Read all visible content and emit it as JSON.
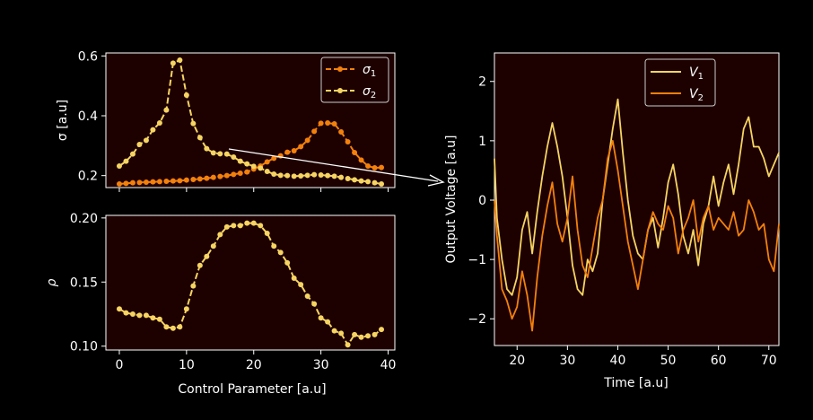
{
  "chart_data": [
    {
      "type": "line",
      "panel": "top-left",
      "xlabel": "",
      "ylabel": "σ [a.u]",
      "xlim": [
        -2,
        41
      ],
      "ylim": [
        0.16,
        0.61
      ],
      "yticks": [
        0.2,
        0.4,
        0.6
      ],
      "ytick_labels": [
        "0.2",
        "0.4",
        "0.6"
      ],
      "xticks": [
        0,
        10,
        20,
        30,
        40
      ],
      "grid": false,
      "legend_position": "top-right",
      "series": [
        {
          "name": "σ1",
          "legend_base": "σ",
          "legend_sub": "1",
          "color": "#f4800c",
          "x": [
            0,
            1,
            2,
            3,
            4,
            5,
            6,
            7,
            8,
            9,
            10,
            11,
            12,
            13,
            14,
            15,
            16,
            17,
            18,
            19,
            20,
            21,
            22,
            23,
            24,
            25,
            26,
            27,
            28,
            29,
            30,
            31,
            32,
            33,
            34,
            35,
            36,
            37,
            38,
            39
          ],
          "y": [
            0.172,
            0.174,
            0.176,
            0.177,
            0.178,
            0.179,
            0.18,
            0.181,
            0.182,
            0.183,
            0.185,
            0.187,
            0.189,
            0.191,
            0.194,
            0.197,
            0.2,
            0.204,
            0.208,
            0.212,
            0.222,
            0.232,
            0.246,
            0.258,
            0.266,
            0.278,
            0.283,
            0.297,
            0.318,
            0.348,
            0.375,
            0.376,
            0.373,
            0.346,
            0.313,
            0.277,
            0.252,
            0.232,
            0.226,
            0.227
          ]
        },
        {
          "name": "σ2",
          "legend_base": "σ",
          "legend_sub": "2",
          "color": "#f6d462",
          "x": [
            0,
            1,
            2,
            3,
            4,
            5,
            6,
            7,
            8,
            9,
            10,
            11,
            12,
            13,
            14,
            15,
            16,
            17,
            18,
            19,
            20,
            21,
            22,
            23,
            24,
            25,
            26,
            27,
            28,
            29,
            30,
            31,
            32,
            33,
            34,
            35,
            36,
            37,
            38,
            39
          ],
          "y": [
            0.232,
            0.248,
            0.272,
            0.304,
            0.318,
            0.353,
            0.376,
            0.419,
            0.576,
            0.586,
            0.469,
            0.374,
            0.327,
            0.29,
            0.276,
            0.273,
            0.272,
            0.262,
            0.248,
            0.239,
            0.231,
            0.225,
            0.214,
            0.205,
            0.201,
            0.2,
            0.198,
            0.199,
            0.201,
            0.203,
            0.202,
            0.2,
            0.198,
            0.194,
            0.19,
            0.186,
            0.182,
            0.18,
            0.176,
            0.172
          ]
        }
      ]
    },
    {
      "type": "line",
      "panel": "bottom-left",
      "xlabel": "Control Parameter [a.u]",
      "ylabel": "ρ",
      "xlim": [
        -2,
        41
      ],
      "ylim": [
        0.097,
        0.202
      ],
      "yticks": [
        0.1,
        0.15,
        0.2
      ],
      "ytick_labels": [
        "0.10",
        "0.15",
        "0.20"
      ],
      "xticks": [
        0,
        10,
        20,
        30,
        40
      ],
      "xtick_labels": [
        "0",
        "10",
        "20",
        "30",
        "40"
      ],
      "grid": false,
      "series": [
        {
          "name": "",
          "color": "#f6d462",
          "x": [
            0,
            1,
            2,
            3,
            4,
            5,
            6,
            7,
            8,
            9,
            10,
            11,
            12,
            13,
            14,
            15,
            16,
            17,
            18,
            19,
            20,
            21,
            22,
            23,
            24,
            25,
            26,
            27,
            28,
            29,
            30,
            31,
            32,
            33,
            34,
            35,
            36,
            37,
            38,
            39
          ],
          "y": [
            0.129,
            0.126,
            0.125,
            0.124,
            0.124,
            0.122,
            0.121,
            0.115,
            0.114,
            0.115,
            0.129,
            0.147,
            0.163,
            0.17,
            0.178,
            0.187,
            0.193,
            0.194,
            0.194,
            0.196,
            0.196,
            0.194,
            0.188,
            0.178,
            0.173,
            0.165,
            0.153,
            0.148,
            0.139,
            0.133,
            0.122,
            0.119,
            0.112,
            0.11,
            0.101,
            0.109,
            0.107,
            0.108,
            0.109,
            0.113
          ]
        }
      ]
    },
    {
      "type": "line",
      "panel": "right",
      "xlabel": "Time [a.u]",
      "ylabel": "Output Voltage [a.u]",
      "xlim": [
        15.5,
        72
      ],
      "ylim": [
        -2.45,
        2.48
      ],
      "xticks": [
        20,
        30,
        40,
        50,
        60,
        70
      ],
      "xtick_labels": [
        "20",
        "30",
        "40",
        "50",
        "60",
        "70"
      ],
      "yticks": [
        -2,
        -1,
        0,
        1,
        2
      ],
      "ytick_labels": [
        "−2",
        "−1",
        "0",
        "1",
        "2"
      ],
      "grid": false,
      "legend_position": "top-center",
      "series": [
        {
          "name": "V1",
          "legend_base": "V",
          "legend_sub": "1",
          "color": "#f6d462",
          "x": [
            15.5,
            16,
            17,
            18,
            19,
            20,
            21,
            22,
            23,
            24,
            25,
            26,
            27,
            28,
            29,
            30,
            31,
            32,
            33,
            34,
            35,
            36,
            37,
            38,
            39,
            40,
            41,
            42,
            43,
            44,
            45,
            46,
            47,
            48,
            49,
            50,
            51,
            52,
            53,
            54,
            55,
            56,
            57,
            58,
            59,
            60,
            61,
            62,
            63,
            64,
            65,
            66,
            67,
            68,
            69,
            70,
            71,
            72
          ],
          "y": [
            0.7,
            -0.3,
            -1.0,
            -1.5,
            -1.6,
            -1.3,
            -0.5,
            -0.2,
            -0.9,
            -0.2,
            0.4,
            0.9,
            1.3,
            0.9,
            0.4,
            -0.3,
            -1.1,
            -1.5,
            -1.6,
            -1.0,
            -1.2,
            -0.9,
            0.0,
            0.6,
            1.2,
            1.7,
            0.8,
            0.0,
            -0.6,
            -0.9,
            -1.0,
            -0.5,
            -0.3,
            -0.8,
            -0.3,
            0.3,
            0.6,
            0.1,
            -0.6,
            -0.9,
            -0.5,
            -1.1,
            -0.4,
            -0.1,
            0.4,
            -0.1,
            0.3,
            0.6,
            0.1,
            0.6,
            1.2,
            1.4,
            0.9,
            0.9,
            0.7,
            0.4,
            0.6,
            0.8
          ]
        },
        {
          "name": "V2",
          "legend_base": "V",
          "legend_sub": "2",
          "color": "#f4800c",
          "x": [
            15.5,
            16,
            17,
            18,
            19,
            20,
            21,
            22,
            23,
            24,
            25,
            26,
            27,
            28,
            29,
            30,
            31,
            32,
            33,
            34,
            35,
            36,
            37,
            38,
            39,
            40,
            41,
            42,
            43,
            44,
            45,
            46,
            47,
            48,
            49,
            50,
            51,
            52,
            53,
            54,
            55,
            56,
            57,
            58,
            59,
            60,
            61,
            62,
            63,
            64,
            65,
            66,
            67,
            68,
            69,
            70,
            71,
            72
          ],
          "y": [
            0.0,
            -0.6,
            -1.5,
            -1.7,
            -2.0,
            -1.8,
            -1.2,
            -1.6,
            -2.2,
            -1.3,
            -0.6,
            -0.1,
            0.3,
            -0.4,
            -0.7,
            -0.3,
            0.4,
            -0.5,
            -1.1,
            -1.3,
            -0.8,
            -0.3,
            0.0,
            0.7,
            1.0,
            0.5,
            -0.1,
            -0.7,
            -1.1,
            -1.5,
            -1.0,
            -0.5,
            -0.2,
            -0.4,
            -0.5,
            -0.1,
            -0.3,
            -0.9,
            -0.5,
            -0.3,
            0.0,
            -0.7,
            -0.3,
            -0.1,
            -0.5,
            -0.3,
            -0.4,
            -0.5,
            -0.2,
            -0.6,
            -0.5,
            0.0,
            -0.2,
            -0.5,
            -0.4,
            -1.0,
            -1.2,
            -0.4
          ]
        }
      ]
    }
  ]
}
